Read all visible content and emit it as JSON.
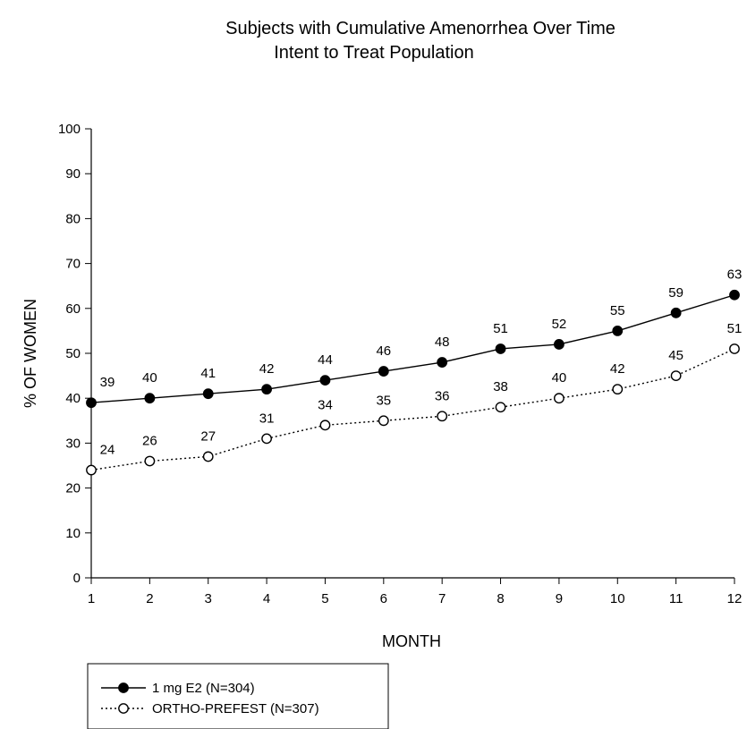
{
  "chart_data": {
    "type": "line",
    "title": "Subjects with Cumulative Amenorrhea Over Time",
    "subtitle": "Intent to Treat Population",
    "xlabel": "MONTH",
    "ylabel": "% OF WOMEN",
    "x": [
      1,
      2,
      3,
      4,
      5,
      6,
      7,
      8,
      9,
      10,
      11,
      12
    ],
    "ylim": [
      0,
      100
    ],
    "yticks": [
      0,
      10,
      20,
      30,
      40,
      50,
      60,
      70,
      80,
      90,
      100
    ],
    "grid": false,
    "legend_position": "bottom-left",
    "series": [
      {
        "name": "1 mg E2 (N=304)",
        "values": [
          39,
          40,
          41,
          42,
          44,
          46,
          48,
          51,
          52,
          55,
          59,
          63
        ],
        "marker": "filled-circle",
        "line_style": "solid",
        "color": "#000000"
      },
      {
        "name": "ORTHO-PREFEST (N=307)",
        "values": [
          24,
          26,
          27,
          31,
          34,
          35,
          36,
          38,
          40,
          42,
          45,
          51
        ],
        "marker": "open-circle",
        "line_style": "dotted",
        "color": "#000000"
      }
    ]
  }
}
